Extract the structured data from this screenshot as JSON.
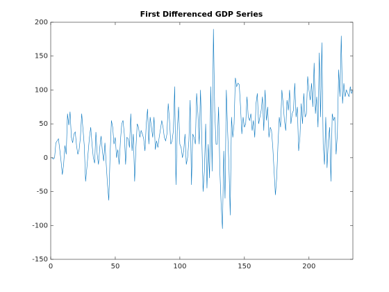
{
  "chart_data": {
    "type": "line",
    "title": "First Differenced GDP Series",
    "color": "#0072bd",
    "grid": false,
    "xlim": [
      0,
      234
    ],
    "xticks": [
      0,
      50,
      100,
      150,
      200
    ],
    "ylim": [
      -150,
      200
    ],
    "yticks": [
      -150,
      -100,
      -50,
      0,
      50,
      100,
      150,
      200
    ],
    "x": [
      1,
      2,
      3,
      4,
      5,
      6,
      7,
      8,
      9,
      10,
      11,
      12,
      13,
      14,
      15,
      16,
      17,
      18,
      19,
      20,
      21,
      22,
      23,
      24,
      25,
      26,
      27,
      28,
      29,
      30,
      31,
      32,
      33,
      34,
      35,
      36,
      37,
      38,
      39,
      40,
      41,
      42,
      43,
      44,
      45,
      46,
      47,
      48,
      49,
      50,
      51,
      52,
      53,
      54,
      55,
      56,
      57,
      58,
      59,
      60,
      61,
      62,
      63,
      64,
      65,
      66,
      67,
      68,
      69,
      70,
      71,
      72,
      73,
      74,
      75,
      76,
      77,
      78,
      79,
      80,
      81,
      82,
      83,
      84,
      85,
      86,
      87,
      88,
      89,
      90,
      91,
      92,
      93,
      94,
      95,
      96,
      97,
      98,
      99,
      100,
      101,
      102,
      103,
      104,
      105,
      106,
      107,
      108,
      109,
      110,
      111,
      112,
      113,
      114,
      115,
      116,
      117,
      118,
      119,
      120,
      121,
      122,
      123,
      124,
      125,
      126,
      127,
      128,
      129,
      130,
      131,
      132,
      133,
      134,
      135,
      136,
      137,
      138,
      139,
      140,
      141,
      142,
      143,
      144,
      145,
      146,
      147,
      148,
      149,
      150,
      151,
      152,
      153,
      154,
      155,
      156,
      157,
      158,
      159,
      160,
      161,
      162,
      163,
      164,
      165,
      166,
      167,
      168,
      169,
      170,
      171,
      172,
      173,
      174,
      175,
      176,
      177,
      178,
      179,
      180,
      181,
      182,
      183,
      184,
      185,
      186,
      187,
      188,
      189,
      190,
      191,
      192,
      193,
      194,
      195,
      196,
      197,
      198,
      199,
      200,
      201,
      202,
      203,
      204,
      205,
      206,
      207,
      208,
      209,
      210,
      211,
      212,
      213,
      214,
      215,
      216,
      217,
      218,
      219,
      220,
      221,
      222,
      223,
      224,
      225,
      226,
      227,
      228,
      229,
      230,
      231,
      232,
      233,
      234
    ],
    "values": [
      0,
      -2,
      0,
      22,
      25,
      28,
      12,
      -5,
      -25,
      -10,
      18,
      5,
      65,
      48,
      68,
      30,
      22,
      35,
      38,
      18,
      5,
      12,
      30,
      65,
      42,
      18,
      -35,
      -15,
      8,
      30,
      45,
      20,
      0,
      -8,
      38,
      5,
      -10,
      15,
      32,
      10,
      -5,
      22,
      -10,
      -40,
      -63,
      5,
      55,
      45,
      20,
      30,
      0,
      12,
      -10,
      25,
      50,
      55,
      35,
      -10,
      30,
      28,
      15,
      65,
      10,
      35,
      -35,
      15,
      50,
      45,
      30,
      40,
      35,
      28,
      10,
      50,
      72,
      20,
      60,
      45,
      30,
      60,
      12,
      25,
      15,
      30,
      42,
      55,
      45,
      30,
      25,
      35,
      80,
      55,
      20,
      25,
      40,
      105,
      -40,
      40,
      75,
      20,
      15,
      0,
      10,
      35,
      -10,
      0,
      25,
      85,
      -40,
      35,
      30,
      20,
      95,
      65,
      20,
      100,
      30,
      -50,
      -20,
      50,
      -45,
      20,
      -30,
      105,
      -20,
      190,
      70,
      20,
      20,
      75,
      -20,
      -70,
      -105,
      10,
      -60,
      100,
      40,
      -10,
      -85,
      60,
      30,
      50,
      118,
      105,
      110,
      108,
      75,
      35,
      60,
      45,
      50,
      90,
      60,
      55,
      65,
      40,
      55,
      30,
      80,
      95,
      50,
      60,
      70,
      90,
      40,
      100,
      55,
      75,
      30,
      45,
      40,
      15,
      -20,
      -55,
      -30,
      20,
      60,
      45,
      100,
      80,
      55,
      40,
      85,
      70,
      100,
      50,
      65,
      70,
      110,
      60,
      75,
      10,
      30,
      80,
      50,
      95,
      60,
      65,
      120,
      100,
      85,
      110,
      75,
      140,
      65,
      90,
      45,
      155,
      60,
      170,
      20,
      -10,
      60,
      -15,
      25,
      45,
      -35,
      65,
      55,
      60,
      5,
      35,
      130,
      90,
      180,
      80,
      110,
      90,
      100,
      95,
      90,
      105,
      95,
      100
    ]
  }
}
